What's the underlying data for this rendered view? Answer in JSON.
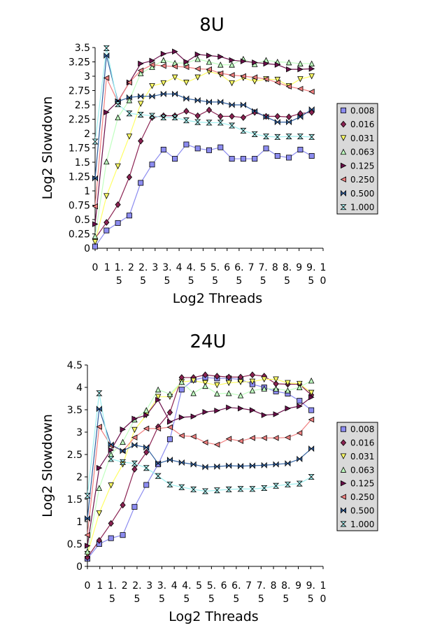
{
  "chart_data": [
    {
      "type": "line",
      "title": "8U",
      "xlabel": "Log2 Threads",
      "ylabel": "Log2 Slowdown",
      "ylim": [
        0,
        3.5
      ],
      "y_ticks": [
        "0",
        "0.25",
        "0.5",
        "0.75",
        "1",
        "1.25",
        "1.5",
        "1.75",
        "2",
        "2.25",
        "2.5",
        "2.75",
        "3",
        "3.25",
        "3.5"
      ],
      "x_ticks": [
        [
          "0"
        ],
        [
          "1"
        ],
        [
          "1.",
          "5"
        ],
        [
          "2"
        ],
        [
          "2.",
          "5"
        ],
        [
          "3"
        ],
        [
          "3.",
          "5"
        ],
        [
          "4"
        ],
        [
          "4.",
          "5"
        ],
        [
          "5"
        ],
        [
          "5.",
          "5"
        ],
        [
          "6"
        ],
        [
          "6.",
          "5"
        ],
        [
          "7"
        ],
        [
          "7.",
          "5"
        ],
        [
          "8"
        ],
        [
          "8.",
          "5"
        ],
        [
          "9"
        ],
        [
          "9.",
          "5"
        ],
        [
          "1",
          "0"
        ]
      ],
      "x": [
        0,
        0.5,
        1,
        1.5,
        2,
        2.5,
        3,
        3.5,
        4,
        4.5,
        5,
        5.5,
        6,
        6.5,
        7,
        7.5,
        8,
        8.5,
        9,
        9.5,
        10
      ],
      "legend_position": "right",
      "series": [
        {
          "name": "0.008",
          "color": "#8c8cf0",
          "marker": "square",
          "values": [
            0.03,
            0.31,
            0.44,
            0.57,
            1.14,
            1.46,
            1.72,
            1.56,
            1.81,
            1.74,
            1.71,
            1.76,
            1.56,
            1.56,
            1.56,
            1.74,
            1.61,
            1.58,
            1.72,
            1.61,
            null
          ]
        },
        {
          "name": "0.016",
          "color": "#8b2252",
          "marker": "diamond",
          "values": [
            0.17,
            0.45,
            0.76,
            1.24,
            1.87,
            2.28,
            2.31,
            2.31,
            2.39,
            2.31,
            2.41,
            2.3,
            2.3,
            2.28,
            2.37,
            2.3,
            2.3,
            2.29,
            2.35,
            2.37,
            null
          ]
        },
        {
          "name": "0.031",
          "color": "#ffff66",
          "marker": "triangle-down",
          "values": [
            0.11,
            0.91,
            1.43,
            1.95,
            2.52,
            2.83,
            2.88,
            2.98,
            2.89,
            2.98,
            3.08,
            3.03,
            2.88,
            2.97,
            2.91,
            2.95,
            2.94,
            2.83,
            2.95,
            3.0,
            null
          ]
        },
        {
          "name": "0.063",
          "color": "#c0ffc0",
          "marker": "triangle-up",
          "values": [
            0.21,
            1.51,
            2.28,
            2.58,
            3.05,
            3.16,
            3.28,
            3.23,
            3.23,
            3.3,
            3.25,
            3.2,
            3.2,
            3.3,
            3.21,
            3.28,
            3.25,
            3.24,
            3.22,
            3.22,
            null
          ]
        },
        {
          "name": "0.125",
          "color": "#6b0f4a",
          "marker": "triangle-right",
          "values": [
            0.42,
            2.37,
            2.56,
            2.89,
            3.22,
            3.27,
            3.39,
            3.43,
            3.25,
            3.38,
            3.36,
            3.34,
            3.28,
            3.26,
            3.24,
            3.22,
            3.2,
            3.12,
            3.12,
            3.13,
            null
          ]
        },
        {
          "name": "0.250",
          "color": "#f08080",
          "marker": "triangle-left",
          "values": [
            0.73,
            2.97,
            2.55,
            2.89,
            3.1,
            3.2,
            3.18,
            3.17,
            3.16,
            3.13,
            3.12,
            3.05,
            3.02,
            3.0,
            2.98,
            2.95,
            2.89,
            2.82,
            2.78,
            2.73,
            null
          ]
        },
        {
          "name": "0.500",
          "color": "#2f5f9f",
          "marker": "bowtie",
          "values": [
            1.22,
            3.36,
            2.56,
            2.63,
            2.65,
            2.65,
            2.69,
            2.69,
            2.61,
            2.58,
            2.55,
            2.55,
            2.5,
            2.5,
            2.39,
            2.29,
            2.2,
            2.2,
            2.29,
            2.42,
            null
          ]
        },
        {
          "name": "1.000",
          "color": "#a0f0f0",
          "marker": "hourglass",
          "values": [
            1.86,
            3.49,
            2.51,
            2.35,
            2.33,
            2.31,
            2.28,
            2.28,
            2.23,
            2.2,
            2.19,
            2.19,
            2.14,
            2.05,
            1.99,
            1.95,
            1.94,
            1.95,
            1.95,
            1.94,
            null
          ]
        }
      ]
    },
    {
      "type": "line",
      "title": "24U",
      "xlabel": "Log2 Threads",
      "ylabel": "Log2 Slowdown",
      "ylim": [
        0,
        4.5
      ],
      "y_ticks": [
        "0",
        "0.5",
        "1",
        "1.5",
        "2",
        "2.5",
        "3",
        "3.5",
        "4",
        "4.5"
      ],
      "x_ticks": [
        [
          "0"
        ],
        [
          "1"
        ],
        [
          "1.",
          "5"
        ],
        [
          "2"
        ],
        [
          "2.",
          "5"
        ],
        [
          "3"
        ],
        [
          "3.",
          "5"
        ],
        [
          "4"
        ],
        [
          "4.",
          "5"
        ],
        [
          "5"
        ],
        [
          "5.",
          "5"
        ],
        [
          "6"
        ],
        [
          "6.",
          "5"
        ],
        [
          "7"
        ],
        [
          "7.",
          "5"
        ],
        [
          "8"
        ],
        [
          "8.",
          "5"
        ],
        [
          "9"
        ],
        [
          "9.",
          "5"
        ],
        [
          "1",
          "0"
        ]
      ],
      "x": [
        0,
        0.5,
        1,
        1.5,
        2,
        2.5,
        3,
        3.5,
        4,
        4.5,
        5,
        5.5,
        6,
        6.5,
        7,
        7.5,
        8,
        8.5,
        9,
        9.5,
        10
      ],
      "legend_position": "right",
      "series": [
        {
          "name": "0.008",
          "color": "#8c8cf0",
          "marker": "square",
          "values": [
            0.17,
            0.5,
            0.63,
            0.7,
            1.33,
            1.82,
            2.28,
            2.84,
            3.95,
            4.17,
            4.22,
            4.2,
            4.2,
            4.18,
            4.07,
            4.0,
            3.91,
            3.86,
            3.7,
            3.49,
            null
          ]
        },
        {
          "name": "0.016",
          "color": "#8b2252",
          "marker": "diamond",
          "values": [
            0.2,
            0.58,
            0.96,
            1.37,
            2.17,
            2.55,
            3.12,
            3.44,
            4.22,
            4.22,
            4.28,
            4.25,
            4.23,
            4.23,
            4.28,
            4.25,
            4.08,
            4.07,
            4.07,
            3.83,
            null
          ]
        },
        {
          "name": "0.031",
          "color": "#ffff66",
          "marker": "triangle-down",
          "values": [
            0.28,
            1.19,
            1.81,
            2.28,
            3.05,
            3.38,
            3.79,
            3.79,
            4.12,
            4.15,
            4.1,
            4.05,
            4.1,
            4.12,
            4.13,
            4.18,
            4.18,
            4.1,
            4.08,
            3.88,
            null
          ]
        },
        {
          "name": "0.063",
          "color": "#c0ffc0",
          "marker": "triangle-up",
          "values": [
            0.33,
            1.75,
            2.5,
            2.78,
            3.28,
            3.49,
            3.95,
            3.85,
            4.12,
            3.87,
            4.03,
            3.86,
            3.87,
            3.82,
            3.93,
            3.97,
            3.97,
            3.93,
            4.0,
            4.15,
            null
          ]
        },
        {
          "name": "0.125",
          "color": "#6b0f4a",
          "marker": "triangle-right",
          "values": [
            0.46,
            2.2,
            2.6,
            3.06,
            3.3,
            3.38,
            3.72,
            3.23,
            3.33,
            3.35,
            3.45,
            3.48,
            3.55,
            3.53,
            3.49,
            3.38,
            3.4,
            3.53,
            3.58,
            3.78,
            null
          ]
        },
        {
          "name": "0.250",
          "color": "#f08080",
          "marker": "triangle-left",
          "values": [
            0.7,
            3.12,
            2.7,
            2.58,
            2.88,
            3.08,
            3.08,
            3.11,
            2.92,
            2.9,
            2.77,
            2.72,
            2.85,
            2.8,
            2.87,
            2.87,
            2.87,
            2.88,
            2.98,
            3.28,
            null
          ]
        },
        {
          "name": "0.500",
          "color": "#2f5f9f",
          "marker": "bowtie",
          "values": [
            1.07,
            3.52,
            2.72,
            2.58,
            2.71,
            2.66,
            2.3,
            2.38,
            2.32,
            2.28,
            2.22,
            2.23,
            2.25,
            2.24,
            2.25,
            2.26,
            2.28,
            2.3,
            2.4,
            2.63,
            null
          ]
        },
        {
          "name": "1.000",
          "color": "#a0f0f0",
          "marker": "hourglass",
          "values": [
            1.58,
            3.87,
            2.4,
            2.33,
            2.3,
            2.2,
            2.02,
            1.83,
            1.77,
            1.72,
            1.68,
            1.7,
            1.72,
            1.73,
            1.73,
            1.75,
            1.8,
            1.83,
            1.85,
            2.0,
            null
          ]
        }
      ]
    }
  ]
}
